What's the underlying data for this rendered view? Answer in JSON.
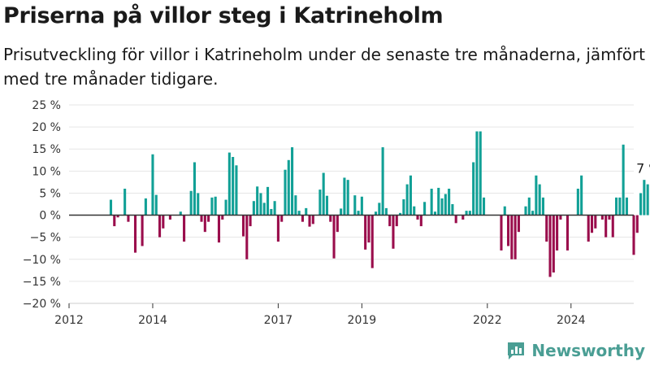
{
  "title": "Priserna på villor steg i Katrineholm",
  "subtitle": "Prisutveckling för villor i Katrineholm under de senaste tre månaderna, jämfört med tre månader tidigare.",
  "brand": "Newsworthy",
  "colors": {
    "positive": "#11a096",
    "negative": "#9a0d4c",
    "zero_line": "#333333",
    "grid": "#e6e6e6",
    "brand": "#4a9e94"
  },
  "chart_data": {
    "type": "bar",
    "title": "Priserna på villor steg i Katrineholm",
    "xlabel": "",
    "ylabel": "",
    "unit": "%",
    "ylim": [
      -20,
      25
    ],
    "yticks": [
      25,
      20,
      15,
      10,
      5,
      0,
      -5,
      -10,
      -15,
      -20
    ],
    "ytick_labels": [
      "25 %",
      "20 %",
      "15 %",
      "10 %",
      "5 %",
      "0 %",
      "−5 %",
      "−10 %",
      "−15 %",
      "−20 %"
    ],
    "xticks": [
      2012,
      2014,
      2017,
      2019,
      2022,
      2024
    ],
    "grid": true,
    "legend": false,
    "annotation": {
      "text": "7 %",
      "target": "last"
    },
    "series": [
      {
        "start": "2013-01",
        "frequency": "monthly",
        "values": [
          3.5,
          -2.5,
          -0.5,
          0,
          6,
          -1.5,
          0,
          -8.5,
          0,
          -7,
          3.8,
          0,
          13.8,
          4.6,
          -5,
          -3,
          0,
          -1,
          0,
          0,
          0.8,
          -6,
          0,
          5.5,
          12,
          5,
          -1.5,
          -3.8,
          -1.5,
          4,
          4.2,
          -6.2,
          -1,
          3.5,
          14.2,
          13.2,
          11.3,
          0,
          -4.8,
          -10,
          -2.5,
          3.2,
          6.5,
          5,
          2.8,
          6.4,
          1.4,
          3.2,
          -6,
          -1.5,
          10.3,
          12.5,
          15.4,
          4.5,
          1,
          -1.5,
          1.6,
          -2.6,
          -2,
          0,
          5.8,
          9.6,
          4.4,
          -1.5,
          -9.8,
          -3.8,
          1.5,
          8.5,
          8,
          0,
          4.5,
          1,
          4.2,
          -7.8,
          -6.2,
          -12,
          0.8,
          2.8,
          15.4,
          1.6,
          -2.5,
          -7.6,
          -2.5,
          0.5,
          3.6,
          7,
          9,
          2,
          -1,
          -2.5,
          3,
          0,
          6,
          0.8,
          6.2,
          3.8,
          4.8,
          6,
          2.5,
          -1.8,
          0,
          -1,
          1,
          1,
          12,
          19,
          19,
          4,
          0,
          0,
          0,
          0,
          -8,
          2,
          -7,
          -10,
          -10,
          -3.8,
          0,
          2,
          4,
          1,
          9,
          7,
          4,
          -6,
          -14,
          -13,
          -8,
          -1,
          0,
          -8,
          0,
          0,
          6,
          9,
          0,
          -6,
          -4,
          -3,
          0,
          -1,
          -5,
          -1,
          -5,
          4,
          4,
          16,
          4,
          0,
          -9,
          -4,
          5,
          8,
          7
        ]
      }
    ]
  }
}
